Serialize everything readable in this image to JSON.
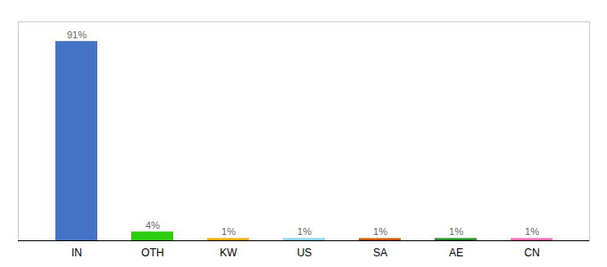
{
  "chart_data": {
    "type": "bar",
    "categories": [
      "IN",
      "OTH",
      "KW",
      "US",
      "SA",
      "AE",
      "CN"
    ],
    "values": [
      91,
      4,
      1,
      1,
      1,
      1,
      1
    ],
    "value_labels": [
      "91%",
      "4%",
      "1%",
      "1%",
      "1%",
      "1%",
      "1%"
    ],
    "colors": [
      "#4472C4",
      "#2ECC11",
      "#FFA500",
      "#87CEEB",
      "#CC5500",
      "#228B22",
      "#FF69B4"
    ],
    "ylim": [
      0,
      100
    ],
    "data_labels": true,
    "tick_labels": "x",
    "grid": false
  }
}
